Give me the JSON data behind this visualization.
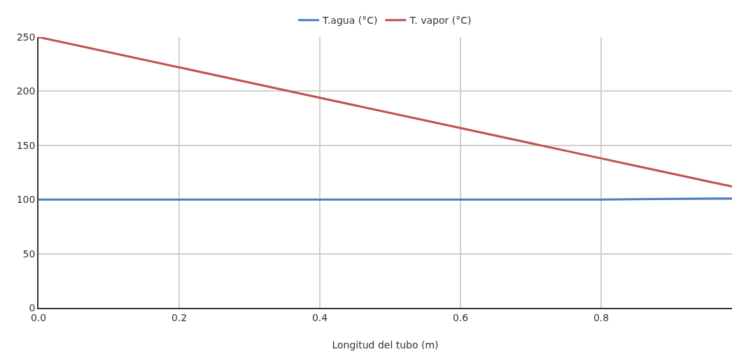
{
  "chart_data": {
    "type": "line",
    "xlabel": "Longitud del tubo (m)",
    "x": [
      0,
      0.2,
      0.4,
      0.6,
      0.8,
      0.85,
      0.9,
      0.986
    ],
    "series": [
      {
        "name": "T.agua (°C)",
        "color": "#4a7ebf",
        "values": [
          100,
          100,
          100,
          100,
          100,
          100.3,
          100.6,
          101
        ]
      },
      {
        "name": "T. vapor (°C)",
        "color": "#c0504d",
        "values": [
          250,
          222,
          194,
          166,
          138,
          131,
          124,
          112
        ]
      }
    ],
    "xlim": [
      0,
      0.986
    ],
    "xticks": [
      {
        "value": 0,
        "label": "0.0"
      },
      {
        "value": 0.2,
        "label": "0.2"
      },
      {
        "value": 0.4,
        "label": "0.4"
      },
      {
        "value": 0.6,
        "label": "0.6"
      },
      {
        "value": 0.8,
        "label": "0.8"
      }
    ],
    "ylim": [
      0,
      250
    ],
    "yticks": [
      0,
      50,
      100,
      150,
      200,
      250
    ],
    "grid": true,
    "legend": "top",
    "marker": "none",
    "line_style": "solid"
  }
}
